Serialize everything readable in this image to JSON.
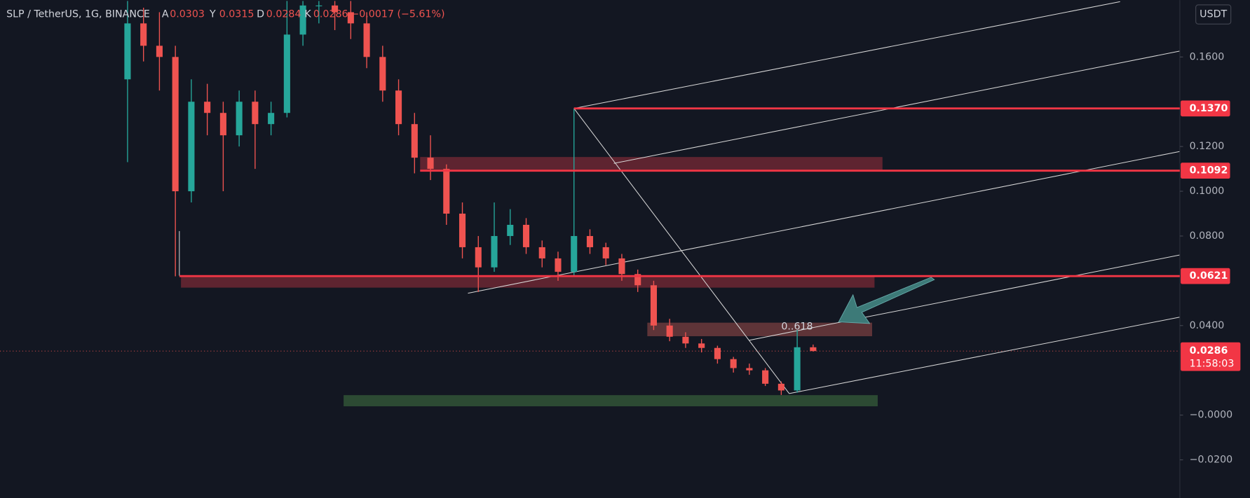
{
  "header": {
    "symbol": "SLP / TetherUS, 1G, BINANCE",
    "open_label": "A",
    "open": "0.0303",
    "high_label": "Y",
    "high": "0.0315",
    "low_label": "D",
    "low": "0.0284",
    "close_label": "K",
    "close": "0.0286",
    "change": "−0.0017 (−5.61%)"
  },
  "chart_data": {
    "type": "candlestick",
    "currency": "USDT",
    "ylim": [
      -0.037,
      0.1854
    ],
    "yticks": [
      {
        "value": -0.02,
        "label": "−0.0200"
      },
      {
        "value": 0,
        "label": "−0.0000"
      },
      {
        "value": 0.04,
        "label": "0.0400"
      },
      {
        "value": 0.08,
        "label": "0.0800"
      },
      {
        "value": 0.1,
        "label": "0.1000"
      },
      {
        "value": 0.12,
        "label": "0.1200"
      },
      {
        "value": 0.16,
        "label": "0.1600"
      }
    ],
    "up_color": "#26a69a",
    "down_color": "#ef5350",
    "open": [
      0.15,
      0.175,
      0.165,
      0.16,
      0.1,
      0.14,
      0.135,
      0.125,
      0.14,
      0.13,
      0.135,
      0.17,
      0.183,
      0.183,
      0.18,
      0.175,
      0.16,
      0.145,
      0.13,
      0.115,
      0.11,
      0.09,
      0.075,
      0.066,
      0.08,
      0.085,
      0.075,
      0.07,
      0.064,
      0.08,
      0.075,
      0.07,
      0.063,
      0.058,
      0.04,
      0.035,
      0.032,
      0.03,
      0.025,
      0.021,
      0.02,
      0.014,
      0.011,
      0.0303
    ],
    "high": [
      0.185,
      0.182,
      0.18,
      0.165,
      0.15,
      0.148,
      0.14,
      0.145,
      0.145,
      0.14,
      0.185,
      0.185,
      0.185,
      0.185,
      0.185,
      0.18,
      0.165,
      0.15,
      0.135,
      0.125,
      0.112,
      0.095,
      0.08,
      0.095,
      0.092,
      0.088,
      0.078,
      0.073,
      0.137,
      0.083,
      0.077,
      0.072,
      0.065,
      0.06,
      0.043,
      0.037,
      0.034,
      0.031,
      0.026,
      0.023,
      0.021,
      0.015,
      0.038,
      0.0315
    ],
    "low": [
      0.113,
      0.158,
      0.145,
      0.062,
      0.095,
      0.125,
      0.1,
      0.12,
      0.11,
      0.125,
      0.133,
      0.165,
      0.175,
      0.172,
      0.168,
      0.155,
      0.14,
      0.125,
      0.108,
      0.105,
      0.085,
      0.07,
      0.055,
      0.064,
      0.076,
      0.072,
      0.066,
      0.06,
      0.062,
      0.072,
      0.067,
      0.06,
      0.055,
      0.038,
      0.033,
      0.03,
      0.028,
      0.023,
      0.019,
      0.018,
      0.013,
      0.009,
      0.01,
      0.0284
    ],
    "close": [
      0.175,
      0.165,
      0.16,
      0.1,
      0.14,
      0.135,
      0.125,
      0.14,
      0.13,
      0.135,
      0.17,
      0.183,
      0.183,
      0.18,
      0.175,
      0.16,
      0.145,
      0.13,
      0.115,
      0.11,
      0.09,
      0.075,
      0.066,
      0.08,
      0.085,
      0.075,
      0.07,
      0.064,
      0.08,
      0.075,
      0.07,
      0.063,
      0.058,
      0.04,
      0.035,
      0.032,
      0.03,
      0.025,
      0.021,
      0.02,
      0.014,
      0.011,
      0.0303,
      0.0286
    ],
    "levels": [
      {
        "value": 0.137,
        "label": "0.1370"
      },
      {
        "value": 0.1092,
        "label": "0.1092"
      },
      {
        "value": 0.0621,
        "label": "0.0621"
      }
    ],
    "level_color": "#f23645",
    "last_price": {
      "value": 0.0286,
      "label": "0.0286"
    },
    "countdown": "11:58:03",
    "annotation": "0..618"
  }
}
